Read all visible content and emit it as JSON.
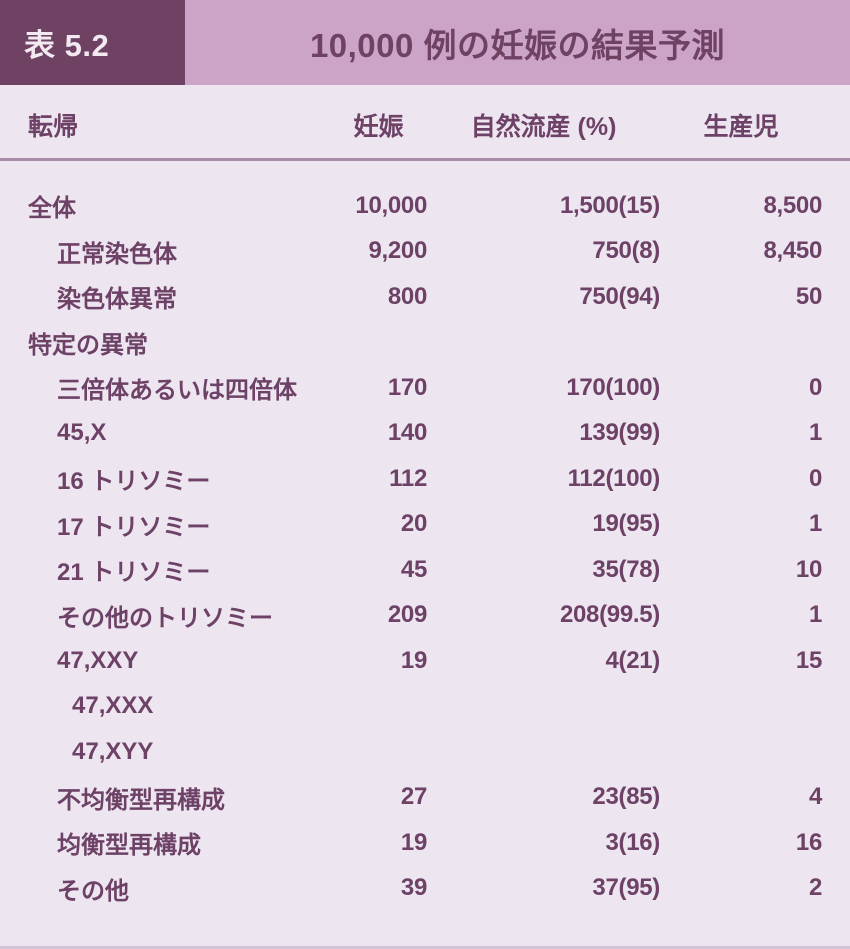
{
  "colors": {
    "badge_bg": "#6f4263",
    "badge_text": "#f2e9f1",
    "titlebar_bg": "#cba4c8",
    "title_text": "#6f4263",
    "page_bg": "#ede6f1",
    "body_text": "#6d4266",
    "header_rule": "#a98ca7",
    "bottom_border": "#d3c3d6"
  },
  "header": {
    "badge": "表 5.2",
    "title": "10,000 例の妊娠の結果予測"
  },
  "columns": [
    "転帰",
    "妊娠",
    "自然流産 (%)",
    "生産児"
  ],
  "rows": [
    {
      "label": "全体",
      "indent": 0,
      "section": false,
      "pregnancies": "10,000",
      "abortion": "1,500(15)",
      "liveborn": "8,500"
    },
    {
      "label": "正常染色体",
      "indent": 1,
      "section": false,
      "pregnancies": "9,200",
      "abortion": "750(8)",
      "liveborn": "8,450"
    },
    {
      "label": "染色体異常",
      "indent": 1,
      "section": false,
      "pregnancies": "800",
      "abortion": "750(94)",
      "liveborn": "50"
    },
    {
      "label": "特定の異常",
      "indent": 0,
      "section": true,
      "pregnancies": "",
      "abortion": "",
      "liveborn": ""
    },
    {
      "label": "三倍体あるいは四倍体",
      "indent": 1,
      "section": false,
      "pregnancies": "170",
      "abortion": "170(100)",
      "liveborn": "0"
    },
    {
      "label": "45,X",
      "indent": 1,
      "section": false,
      "pregnancies": "140",
      "abortion": "139(99)",
      "liveborn": "1"
    },
    {
      "label": "16 トリソミー",
      "indent": 1,
      "section": false,
      "pregnancies": "112",
      "abortion": "112(100)",
      "liveborn": "0"
    },
    {
      "label": "17 トリソミー",
      "indent": 1,
      "section": false,
      "pregnancies": "20",
      "abortion": "19(95)",
      "liveborn": "1"
    },
    {
      "label": "21 トリソミー",
      "indent": 1,
      "section": false,
      "pregnancies": "45",
      "abortion": "35(78)",
      "liveborn": "10"
    },
    {
      "label": "その他のトリソミー",
      "indent": 1,
      "section": false,
      "pregnancies": "209",
      "abortion": "208(99.5)",
      "liveborn": "1"
    },
    {
      "label": "47,XXY",
      "indent": 1,
      "section": false,
      "pregnancies": "19",
      "abortion": "4(21)",
      "liveborn": "15"
    },
    {
      "label": "47,XXX",
      "indent": 2,
      "section": false,
      "pregnancies": "",
      "abortion": "",
      "liveborn": ""
    },
    {
      "label": "47,XYY",
      "indent": 2,
      "section": false,
      "pregnancies": "",
      "abortion": "",
      "liveborn": ""
    },
    {
      "label": "不均衡型再構成",
      "indent": 1,
      "section": false,
      "pregnancies": "27",
      "abortion": "23(85)",
      "liveborn": "4"
    },
    {
      "label": "均衡型再構成",
      "indent": 1,
      "section": false,
      "pregnancies": "19",
      "abortion": "3(16)",
      "liveborn": "16"
    },
    {
      "label": "その他",
      "indent": 1,
      "section": false,
      "pregnancies": "39",
      "abortion": "37(95)",
      "liveborn": "2"
    }
  ]
}
